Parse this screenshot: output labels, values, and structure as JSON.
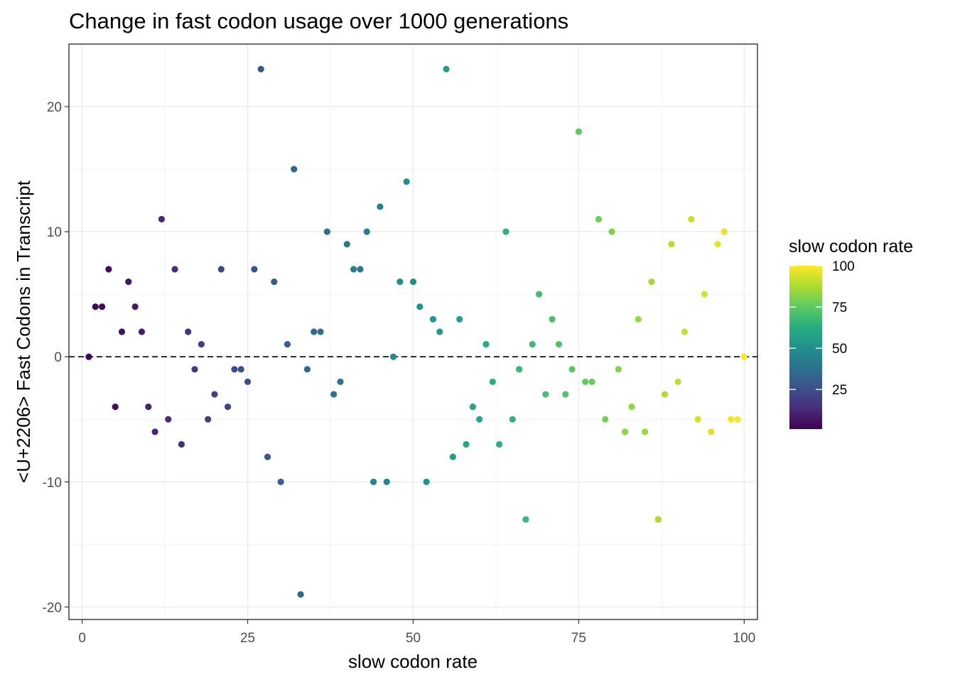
{
  "chart_data": {
    "type": "scatter",
    "title": "Change in fast codon usage over 1000 generations",
    "xlabel": "slow codon rate",
    "ylabel": "<U+2206> Fast Codons in Transcript",
    "xlim": [
      -2,
      102
    ],
    "ylim": [
      -21,
      25
    ],
    "x_ticks": [
      0,
      25,
      50,
      75,
      100
    ],
    "y_ticks": [
      -20,
      -10,
      0,
      10,
      20
    ],
    "x_tick_labels": [
      "0",
      "25",
      "50",
      "75",
      "100"
    ],
    "y_tick_labels": [
      "-20",
      "-10",
      "0",
      "10",
      "20"
    ],
    "grid": true,
    "reference_line": {
      "y": 0,
      "style": "dashed"
    },
    "color_scale": "viridis",
    "legend": {
      "title": "slow codon rate",
      "position": "right",
      "range": [
        1,
        100
      ],
      "ticks": [
        25,
        50,
        75,
        100
      ],
      "tick_labels": [
        "25",
        "50",
        "75",
        "100"
      ]
    },
    "points": [
      {
        "x": 1,
        "y": 0
      },
      {
        "x": 2,
        "y": 4
      },
      {
        "x": 3,
        "y": 4
      },
      {
        "x": 4,
        "y": 7
      },
      {
        "x": 5,
        "y": -4
      },
      {
        "x": 6,
        "y": 2
      },
      {
        "x": 7,
        "y": 6
      },
      {
        "x": 8,
        "y": 4
      },
      {
        "x": 9,
        "y": 2
      },
      {
        "x": 10,
        "y": -4
      },
      {
        "x": 11,
        "y": -6
      },
      {
        "x": 12,
        "y": 11
      },
      {
        "x": 13,
        "y": -5
      },
      {
        "x": 14,
        "y": 7
      },
      {
        "x": 15,
        "y": -7
      },
      {
        "x": 16,
        "y": 2
      },
      {
        "x": 17,
        "y": -1
      },
      {
        "x": 18,
        "y": 1
      },
      {
        "x": 19,
        "y": -5
      },
      {
        "x": 20,
        "y": -3
      },
      {
        "x": 21,
        "y": 7
      },
      {
        "x": 22,
        "y": -4
      },
      {
        "x": 23,
        "y": -1
      },
      {
        "x": 24,
        "y": -1
      },
      {
        "x": 25,
        "y": -2
      },
      {
        "x": 26,
        "y": 7
      },
      {
        "x": 27,
        "y": 23
      },
      {
        "x": 28,
        "y": -8
      },
      {
        "x": 29,
        "y": 6
      },
      {
        "x": 30,
        "y": -10
      },
      {
        "x": 31,
        "y": 1
      },
      {
        "x": 32,
        "y": 15
      },
      {
        "x": 33,
        "y": -19
      },
      {
        "x": 34,
        "y": -1
      },
      {
        "x": 35,
        "y": 2
      },
      {
        "x": 36,
        "y": 2
      },
      {
        "x": 37,
        "y": 10
      },
      {
        "x": 38,
        "y": -3
      },
      {
        "x": 39,
        "y": -2
      },
      {
        "x": 40,
        "y": 9
      },
      {
        "x": 41,
        "y": 7
      },
      {
        "x": 42,
        "y": 7
      },
      {
        "x": 43,
        "y": 10
      },
      {
        "x": 44,
        "y": -10
      },
      {
        "x": 45,
        "y": 12
      },
      {
        "x": 46,
        "y": -10
      },
      {
        "x": 47,
        "y": 0
      },
      {
        "x": 48,
        "y": 6
      },
      {
        "x": 49,
        "y": 14
      },
      {
        "x": 50,
        "y": 6
      },
      {
        "x": 51,
        "y": 4
      },
      {
        "x": 52,
        "y": -10
      },
      {
        "x": 53,
        "y": 3
      },
      {
        "x": 54,
        "y": 2
      },
      {
        "x": 55,
        "y": 23
      },
      {
        "x": 56,
        "y": -8
      },
      {
        "x": 57,
        "y": 3
      },
      {
        "x": 58,
        "y": -7
      },
      {
        "x": 59,
        "y": -4
      },
      {
        "x": 60,
        "y": -5
      },
      {
        "x": 61,
        "y": 1
      },
      {
        "x": 62,
        "y": -2
      },
      {
        "x": 63,
        "y": -7
      },
      {
        "x": 64,
        "y": 10
      },
      {
        "x": 65,
        "y": -5
      },
      {
        "x": 66,
        "y": -1
      },
      {
        "x": 67,
        "y": -13
      },
      {
        "x": 68,
        "y": 1
      },
      {
        "x": 69,
        "y": 5
      },
      {
        "x": 70,
        "y": -3
      },
      {
        "x": 71,
        "y": 3
      },
      {
        "x": 72,
        "y": 1
      },
      {
        "x": 73,
        "y": -3
      },
      {
        "x": 74,
        "y": -1
      },
      {
        "x": 75,
        "y": 18
      },
      {
        "x": 76,
        "y": -2
      },
      {
        "x": 77,
        "y": -2
      },
      {
        "x": 78,
        "y": 11
      },
      {
        "x": 79,
        "y": -5
      },
      {
        "x": 80,
        "y": 10
      },
      {
        "x": 81,
        "y": -1
      },
      {
        "x": 82,
        "y": -6
      },
      {
        "x": 83,
        "y": -4
      },
      {
        "x": 84,
        "y": 3
      },
      {
        "x": 85,
        "y": -6
      },
      {
        "x": 86,
        "y": 6
      },
      {
        "x": 87,
        "y": -13
      },
      {
        "x": 88,
        "y": -3
      },
      {
        "x": 89,
        "y": 9
      },
      {
        "x": 90,
        "y": -2
      },
      {
        "x": 91,
        "y": 2
      },
      {
        "x": 92,
        "y": 11
      },
      {
        "x": 93,
        "y": -5
      },
      {
        "x": 94,
        "y": 5
      },
      {
        "x": 95,
        "y": -6
      },
      {
        "x": 96,
        "y": 9
      },
      {
        "x": 97,
        "y": 10
      },
      {
        "x": 98,
        "y": -5
      },
      {
        "x": 99,
        "y": -5
      },
      {
        "x": 100,
        "y": 0
      }
    ]
  }
}
